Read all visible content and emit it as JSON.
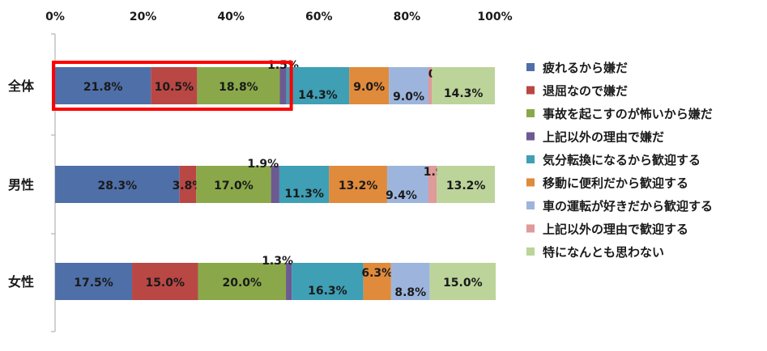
{
  "chart_data": {
    "type": "bar",
    "orientation": "horizontal",
    "stacked": true,
    "xlim": [
      0,
      100
    ],
    "x_ticks": [
      "0%",
      "20%",
      "40%",
      "60%",
      "80%",
      "100%"
    ],
    "x_tick_values": [
      0,
      20,
      40,
      60,
      80,
      100
    ],
    "categories": [
      "全体",
      "男性",
      "女性"
    ],
    "legend_position": "right",
    "grid": false,
    "highlight": {
      "category": "全体",
      "series_range": [
        0,
        3
      ],
      "color": "#ff0000"
    },
    "series": [
      {
        "name": "疲れるから嫌だ",
        "color": "#4f6fa8",
        "values": [
          21.8,
          28.3,
          17.5
        ],
        "labels": [
          "21.8%",
          "28.3%",
          "17.5%"
        ]
      },
      {
        "name": "退屈なので嫌だ",
        "color": "#b94744",
        "values": [
          10.5,
          3.8,
          15.0
        ],
        "labels": [
          "10.5%",
          "3.8%",
          "15.0%"
        ]
      },
      {
        "name": "事故を起こすのが怖いから嫌だ",
        "color": "#8aa84a",
        "values": [
          18.8,
          17.0,
          20.0
        ],
        "labels": [
          "18.8%",
          "17.0%",
          "20.0%"
        ]
      },
      {
        "name": "上記以外の理由で嫌だ",
        "color": "#6c5a91",
        "values": [
          1.5,
          1.9,
          1.3
        ],
        "labels": [
          "1.5%",
          "1.9%",
          "1.3%"
        ]
      },
      {
        "name": "気分転換になるから歓迎する",
        "color": "#3e9fb5",
        "values": [
          14.3,
          11.3,
          16.3
        ],
        "labels": [
          "14.3%",
          "11.3%",
          "16.3%"
        ]
      },
      {
        "name": "移動に便利だから歓迎する",
        "color": "#e08a3c",
        "values": [
          9.0,
          13.2,
          6.3
        ],
        "labels": [
          "9.0%",
          "13.2%",
          "6.3%"
        ]
      },
      {
        "name": "車の運転が好きだから歓迎する",
        "color": "#9db5dc",
        "values": [
          9.0,
          9.4,
          8.8
        ],
        "labels": [
          "9.0%",
          "9.4%",
          "8.8%"
        ]
      },
      {
        "name": "上記以外の理由で歓迎する",
        "color": "#df9a9a",
        "values": [
          0.8,
          1.9,
          0.0
        ],
        "labels": [
          "0.8%",
          "1.9%",
          ""
        ]
      },
      {
        "name": "特になんとも思わない",
        "color": "#bcd49a",
        "values": [
          14.3,
          13.2,
          15.0
        ],
        "labels": [
          "14.3%",
          "13.2%",
          "15.0%"
        ]
      }
    ]
  }
}
